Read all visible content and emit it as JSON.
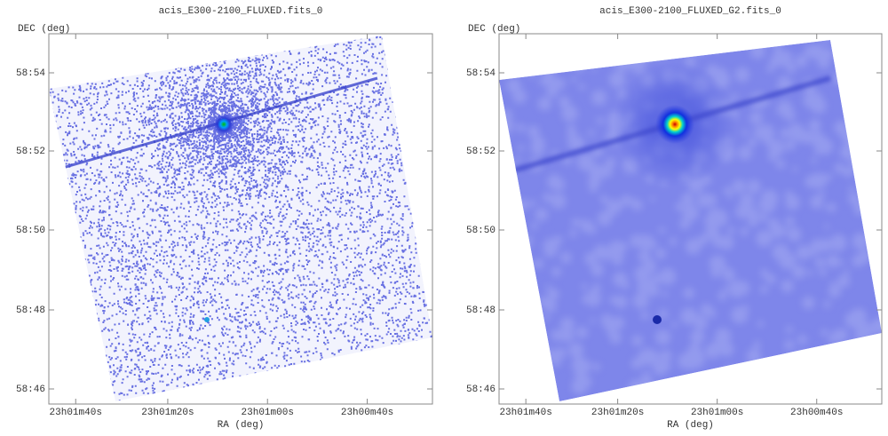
{
  "panels": [
    {
      "title": "acis_E300-2100_FLUXED.fits_0",
      "ylabel": "DEC (deg)",
      "xlabel": "RA (deg)",
      "xticks": [
        "23h01m40s",
        "23h01m20s",
        "23h01m00s",
        "23h00m40s"
      ],
      "yticks": [
        "58:54",
        "58:52",
        "58:50",
        "58:48",
        "58:46"
      ]
    },
    {
      "title": "acis_E300-2100_FLUXED_G2.fits_0",
      "ylabel": "DEC (deg)",
      "xlabel": "RA (deg)",
      "xticks": [
        "23h01m40s",
        "23h01m20s",
        "23h01m00s",
        "23h00m40s"
      ],
      "yticks": [
        "58:54",
        "58:52",
        "58:50",
        "58:48",
        "58:46"
      ]
    }
  ]
}
